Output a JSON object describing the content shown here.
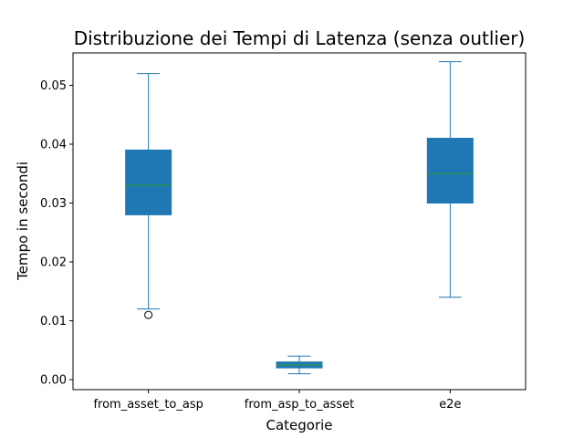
{
  "chart_data": {
    "type": "box",
    "title": "Distribuzione dei Tempi di Latenza (senza outlier)",
    "xlabel": "Categorie",
    "ylabel": "Tempo in secondi",
    "ylim": [
      -0.0017,
      0.0555
    ],
    "yticks": [
      0.0,
      0.01,
      0.02,
      0.03,
      0.04,
      0.05
    ],
    "ytick_labels": [
      "0.00",
      "0.01",
      "0.02",
      "0.03",
      "0.04",
      "0.05"
    ],
    "grid": false,
    "colors": {
      "box_fill": "#1f77b4",
      "median": "#2ca02c",
      "whisker": "#1f77b4",
      "outlier_edge": "#000000",
      "axis": "#000000"
    },
    "categories": [
      "from_asset_to_asp",
      "from_asp_to_asset",
      "e2e"
    ],
    "boxes": [
      {
        "label": "from_asset_to_asp",
        "whisker_low": 0.012,
        "q1": 0.028,
        "median": 0.033,
        "q3": 0.039,
        "whisker_high": 0.052,
        "outliers": [
          0.011
        ]
      },
      {
        "label": "from_asp_to_asset",
        "whisker_low": 0.001,
        "q1": 0.002,
        "median": 0.0025,
        "q3": 0.003,
        "whisker_high": 0.004,
        "outliers": []
      },
      {
        "label": "e2e",
        "whisker_low": 0.014,
        "q1": 0.03,
        "median": 0.035,
        "q3": 0.041,
        "whisker_high": 0.054,
        "outliers": []
      }
    ]
  }
}
